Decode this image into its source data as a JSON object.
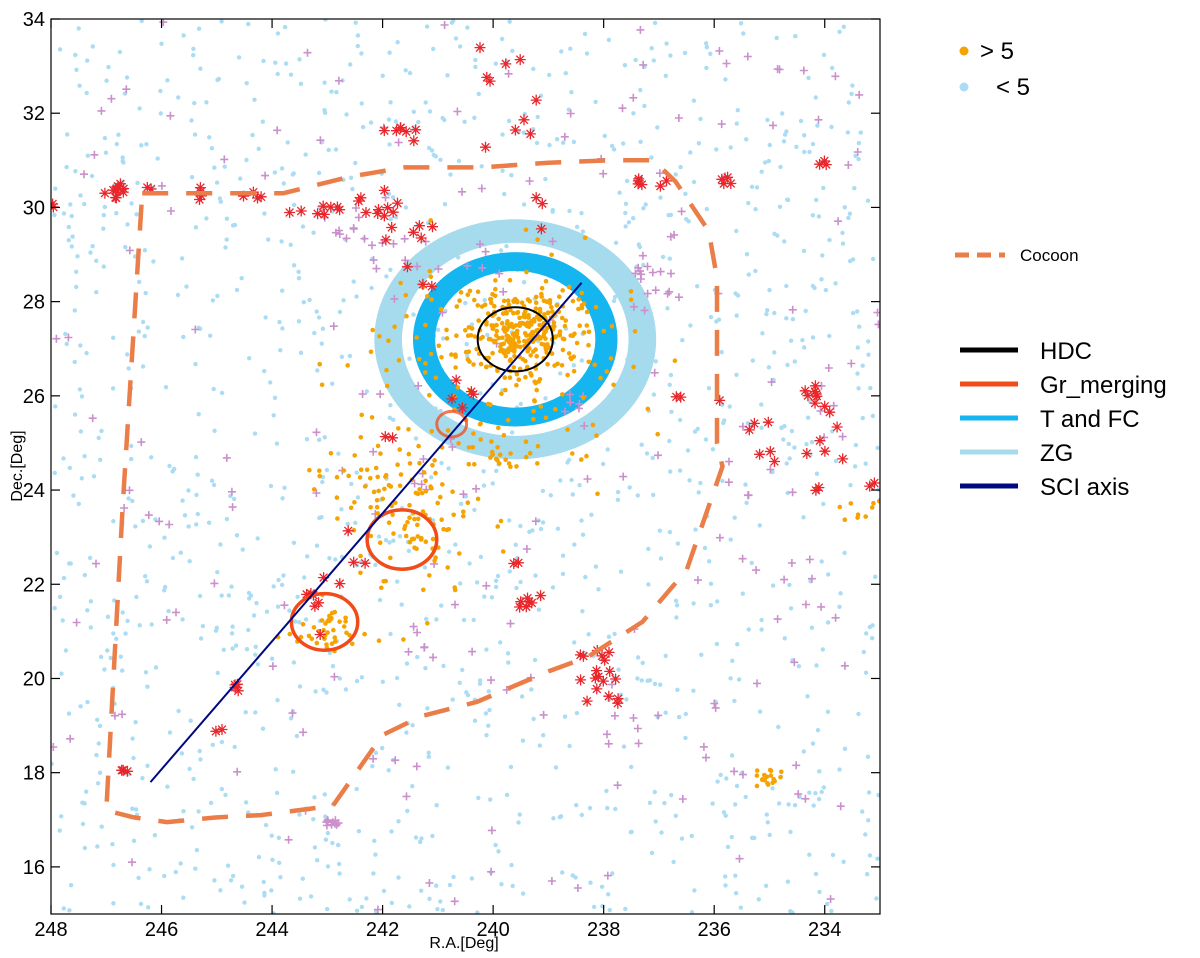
{
  "chart_data": {
    "type": "scatter",
    "xlabel": "R.A.[Deg]",
    "ylabel": "Dec.[Deg]",
    "xlim": [
      248,
      233
    ],
    "ylim": [
      15,
      34
    ],
    "x_reversed": true,
    "xticks": [
      248,
      246,
      244,
      242,
      240,
      238,
      236,
      234
    ],
    "yticks": [
      16,
      18,
      20,
      22,
      24,
      26,
      28,
      30,
      32,
      34
    ],
    "grid": false,
    "colors": {
      "high": "#f5a300",
      "low": "#aadcf3",
      "cluster_star": "#e8262b",
      "cluster_plus": "#c990cc",
      "cocoon": "#eb7d48",
      "hdc": "#000000",
      "gr_merging": "#f04b18",
      "t_and_fc": "#15b5ef",
      "zg": "#a6dbee",
      "sci_axis": "#000a80"
    },
    "legend": {
      "markers": [
        {
          "label": "> 5",
          "color": "#f5a300"
        },
        {
          "label": "< 5",
          "color": "#aadcf3"
        }
      ],
      "cocoon": {
        "label": "Cocoon",
        "color": "#eb7d48"
      },
      "lines": [
        {
          "label": "HDC",
          "color": "#000000"
        },
        {
          "label": "Gr_merging",
          "color": "#f04b18"
        },
        {
          "label": "T and FC",
          "color": "#15b5ef"
        },
        {
          "label": "ZG",
          "color": "#a6dbee"
        },
        {
          "label": "SCI axis",
          "color": "#000a80"
        }
      ]
    },
    "cocoon_path": [
      [
        246.35,
        30.3
      ],
      [
        243.8,
        30.3
      ],
      [
        242.6,
        30.65
      ],
      [
        241.6,
        30.85
      ],
      [
        240.2,
        30.85
      ],
      [
        239.0,
        30.95
      ],
      [
        237.9,
        31.0
      ],
      [
        237.1,
        31.0
      ],
      [
        236.7,
        30.55
      ],
      [
        236.1,
        29.5
      ],
      [
        235.95,
        28.5
      ],
      [
        235.95,
        25.0
      ],
      [
        235.85,
        24.5
      ],
      [
        236.5,
        22.3
      ],
      [
        237.3,
        21.2
      ],
      [
        238.3,
        20.45
      ],
      [
        239.0,
        20.15
      ],
      [
        240.3,
        19.5
      ],
      [
        241.3,
        19.2
      ],
      [
        242.0,
        18.8
      ],
      [
        242.9,
        17.3
      ],
      [
        244.2,
        17.1
      ],
      [
        245.0,
        17.05
      ],
      [
        245.9,
        16.95
      ],
      [
        246.5,
        17.05
      ],
      [
        247.0,
        17.2
      ],
      [
        246.7,
        23.7
      ],
      [
        246.35,
        30.3
      ]
    ],
    "zg_ring": {
      "cx": 239.6,
      "cy": 27.2,
      "rx_outer": 2.55,
      "ry_outer": 2.55,
      "rx_inner": 2.05,
      "ry_inner": 2.05
    },
    "t_fc_ring": {
      "cx": 239.6,
      "cy": 27.2,
      "rx_outer": 1.85,
      "ry_outer": 1.85,
      "rx_inner": 1.45,
      "ry_inner": 1.45
    },
    "hdc": {
      "cx": 239.6,
      "cy": 27.2,
      "r": 0.68
    },
    "gr_merging": [
      {
        "cx": 240.75,
        "cy": 25.4,
        "r": 0.27
      },
      {
        "cx": 241.65,
        "cy": 22.95,
        "r": 0.63
      },
      {
        "cx": 243.05,
        "cy": 21.2,
        "r": 0.6
      }
    ],
    "sci_axis": [
      [
        246.2,
        17.8
      ],
      [
        238.4,
        28.4
      ]
    ],
    "high_density_clusters": [
      {
        "x": 239.5,
        "y": 27.3,
        "sx": 0.55,
        "sy": 0.45,
        "n": 260
      },
      {
        "x": 239.7,
        "y": 27.0,
        "sx": 1.25,
        "sy": 1.05,
        "n": 140
      },
      {
        "x": 241.4,
        "y": 23.3,
        "sx": 0.6,
        "sy": 1.0,
        "n": 90
      },
      {
        "x": 243.0,
        "y": 21.0,
        "sx": 0.3,
        "sy": 0.3,
        "n": 40
      },
      {
        "x": 242.0,
        "y": 24.0,
        "sx": 0.6,
        "sy": 0.5,
        "n": 40
      },
      {
        "x": 240.0,
        "y": 25.0,
        "sx": 0.6,
        "sy": 0.3,
        "n": 30
      },
      {
        "x": 235.0,
        "y": 17.9,
        "sx": 0.12,
        "sy": 0.1,
        "n": 18
      },
      {
        "x": 233.5,
        "y": 23.7,
        "sx": 0.3,
        "sy": 0.3,
        "n": 10
      }
    ],
    "low_density_count": 1300,
    "star_groups": [
      [
        246.8,
        30.35,
        0.15,
        0.1,
        10
      ],
      [
        248.0,
        30.0,
        0.05,
        0.05,
        3
      ],
      [
        246.2,
        30.4,
        0.05,
        0.05,
        2
      ],
      [
        245.3,
        30.4,
        0.1,
        0.1,
        4
      ],
      [
        244.3,
        30.3,
        0.1,
        0.1,
        4
      ],
      [
        243.6,
        30.0,
        0.05,
        0.05,
        2
      ],
      [
        242.9,
        29.9,
        0.2,
        0.1,
        6
      ],
      [
        241.8,
        29.6,
        0.3,
        0.5,
        14
      ],
      [
        241.3,
        29.5,
        0.05,
        0.1,
        3
      ],
      [
        241.6,
        31.6,
        0.2,
        0.5,
        7
      ],
      [
        239.9,
        33.0,
        0.3,
        0.3,
        4
      ],
      [
        239.3,
        31.9,
        0.3,
        0.6,
        6
      ],
      [
        239.2,
        30.1,
        0.05,
        0.3,
        3
      ],
      [
        237.1,
        30.5,
        0.2,
        0.05,
        6
      ],
      [
        235.7,
        30.55,
        0.1,
        0.05,
        4
      ],
      [
        234.0,
        30.9,
        0.05,
        0.05,
        3
      ],
      [
        234.2,
        25.9,
        0.15,
        0.25,
        9
      ],
      [
        233.8,
        24.9,
        0.2,
        0.3,
        5
      ],
      [
        234.8,
        24.7,
        0.2,
        0.1,
        3
      ],
      [
        235.5,
        25.5,
        0.2,
        0.2,
        4
      ],
      [
        236.7,
        26.0,
        0.05,
        0.05,
        2
      ],
      [
        234.1,
        23.95,
        0.05,
        0.05,
        2
      ],
      [
        233.1,
        24.1,
        0.05,
        0.05,
        2
      ],
      [
        241.2,
        28.3,
        0.05,
        0.05,
        2
      ],
      [
        240.5,
        26.0,
        0.3,
        0.2,
        5
      ],
      [
        239.4,
        21.6,
        0.1,
        0.1,
        7
      ],
      [
        239.6,
        22.5,
        0.05,
        0.05,
        2
      ],
      [
        238.0,
        20.0,
        0.2,
        0.35,
        14
      ],
      [
        237.7,
        19.5,
        0.05,
        0.05,
        2
      ],
      [
        238.4,
        20.5,
        0.05,
        0.05,
        2
      ],
      [
        246.7,
        18.1,
        0.05,
        0.05,
        3
      ],
      [
        245.0,
        18.9,
        0.05,
        0.05,
        2
      ],
      [
        244.6,
        19.8,
        0.1,
        0.1,
        4
      ],
      [
        243.3,
        21.8,
        0.3,
        0.4,
        7
      ],
      [
        242.8,
        22.5,
        0.2,
        0.3,
        4
      ],
      [
        241.9,
        25.1,
        0.1,
        0.1,
        2
      ]
    ],
    "plus_groups": [
      [
        242.7,
        29.6,
        0.3,
        0.2,
        8
      ],
      [
        241.9,
        29.2,
        0.6,
        0.4,
        10
      ],
      [
        240.3,
        28.7,
        0.4,
        0.3,
        6
      ],
      [
        237.3,
        28.6,
        0.1,
        0.2,
        8
      ],
      [
        236.8,
        28.1,
        0.3,
        0.3,
        8
      ],
      [
        247.9,
        27.3,
        0.1,
        0.1,
        3
      ],
      [
        242.9,
        16.95,
        0.1,
        0.05,
        10
      ],
      [
        246.2,
        23.6,
        0.2,
        0.2,
        4
      ],
      [
        241.3,
        24.5,
        0.4,
        0.4,
        10
      ],
      [
        237.8,
        19.0,
        0.3,
        0.2,
        6
      ],
      [
        235.0,
        24.3,
        0.4,
        0.3,
        5
      ],
      [
        234.0,
        25.4,
        0.3,
        0.3,
        4
      ],
      [
        234.3,
        22.2,
        0.3,
        0.3,
        4
      ],
      [
        238.2,
        25.7,
        0.4,
        0.3,
        6
      ],
      [
        241.5,
        20.7,
        0.4,
        0.4,
        6
      ]
    ],
    "plus_scatter_count": 160
  }
}
